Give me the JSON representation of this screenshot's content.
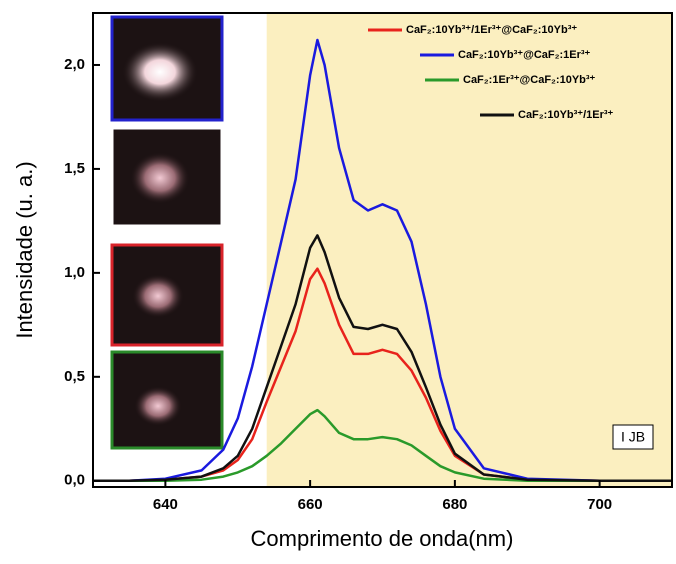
{
  "chart_data": {
    "type": "line",
    "x_label": "Comprimento de onda(nm)",
    "y_label": "Intensidade (u. a.)",
    "x": [
      630,
      635,
      640,
      645,
      648,
      650,
      652,
      654,
      656,
      658,
      660,
      661,
      662,
      664,
      666,
      668,
      670,
      672,
      674,
      676,
      678,
      680,
      684,
      690,
      700,
      710
    ],
    "series": [
      {
        "name": "CaF₂:10Yb³⁺/1Er³⁺@CaF₂:10Yb³⁺",
        "color": "#e8231c",
        "values": [
          0,
          0,
          0.005,
          0.02,
          0.05,
          0.1,
          0.2,
          0.38,
          0.55,
          0.72,
          0.97,
          1.02,
          0.95,
          0.75,
          0.61,
          0.61,
          0.63,
          0.61,
          0.53,
          0.4,
          0.24,
          0.12,
          0.03,
          0.005,
          0,
          0
        ]
      },
      {
        "name": "CaF₂:10Yb³⁺@CaF₂:1Er³⁺",
        "color": "#1a1adf",
        "values": [
          0,
          0,
          0.01,
          0.05,
          0.15,
          0.3,
          0.55,
          0.85,
          1.15,
          1.45,
          1.95,
          2.12,
          2.0,
          1.6,
          1.35,
          1.3,
          1.33,
          1.3,
          1.15,
          0.85,
          0.5,
          0.25,
          0.06,
          0.01,
          0,
          0
        ]
      },
      {
        "name": "CaF₂:1Er³⁺@CaF₂:10Yb³⁺",
        "color": "#2a9a2a",
        "values": [
          0,
          0,
          0,
          0.005,
          0.02,
          0.04,
          0.07,
          0.12,
          0.18,
          0.25,
          0.32,
          0.34,
          0.31,
          0.23,
          0.2,
          0.2,
          0.21,
          0.2,
          0.17,
          0.12,
          0.07,
          0.04,
          0.01,
          0,
          0,
          0
        ]
      },
      {
        "name": "CaF₂:10Yb³⁺/1Er³⁺",
        "color": "#111111",
        "values": [
          0,
          0,
          0.005,
          0.02,
          0.06,
          0.12,
          0.25,
          0.45,
          0.65,
          0.85,
          1.12,
          1.18,
          1.1,
          0.88,
          0.74,
          0.73,
          0.75,
          0.73,
          0.62,
          0.45,
          0.27,
          0.13,
          0.03,
          0.005,
          0,
          0
        ]
      }
    ],
    "xlim": [
      630,
      710
    ],
    "xticks": [
      640,
      660,
      680,
      700
    ],
    "ylim": [
      -0.03,
      2.25
    ],
    "yticks": [
      {
        "value": 0,
        "label": "0,0"
      },
      {
        "value": 0.5,
        "label": "0,5"
      },
      {
        "value": 1.0,
        "label": "1,0"
      },
      {
        "value": 1.5,
        "label": "1,5"
      },
      {
        "value": 2.0,
        "label": "2,0"
      }
    ],
    "highlight_xrange": [
      654,
      710
    ],
    "highlight_color": "#fbefc0",
    "legend": "upper right",
    "badge": "I JB"
  }
}
